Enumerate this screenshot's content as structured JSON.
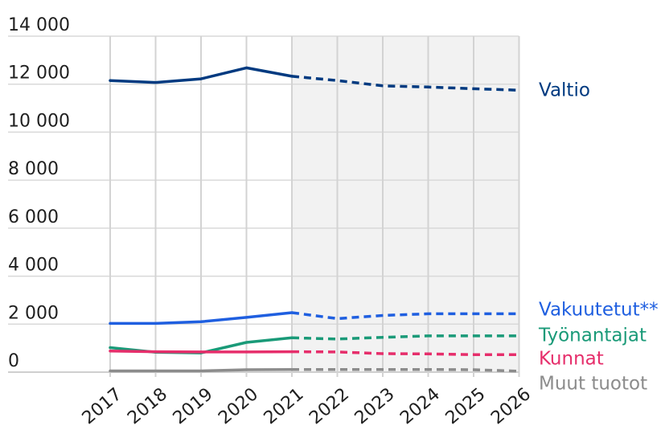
{
  "chart_data": {
    "type": "line",
    "title": "",
    "xlabel": "",
    "ylabel": "",
    "categories": [
      "2017",
      "2018",
      "2019",
      "2020",
      "2021",
      "2022",
      "2023",
      "2024",
      "2025",
      "2026"
    ],
    "ylim": [
      0,
      14000
    ],
    "y_ticks": [
      0,
      2000,
      4000,
      6000,
      8000,
      10000,
      12000,
      14000
    ],
    "y_tick_labels": [
      "0",
      "2 000",
      "4 000",
      "6 000",
      "8 000",
      "10 000",
      "12 000",
      "14 000"
    ],
    "grid": true,
    "forecast_start": "2021",
    "forecast_shading": "#f2f2f2",
    "series": [
      {
        "name": "Valtio",
        "color": "#003a80",
        "values": [
          12150,
          12070,
          12220,
          12680,
          12330,
          12150,
          11930,
          11880,
          11810,
          11750
        ]
      },
      {
        "name": "Vakuutetut**",
        "color": "#1f5fe0",
        "values": [
          2030,
          2030,
          2100,
          2280,
          2480,
          2230,
          2360,
          2430,
          2430,
          2430
        ]
      },
      {
        "name": "Työnantajat",
        "color": "#1a9a78",
        "values": [
          1020,
          830,
          800,
          1240,
          1430,
          1380,
          1450,
          1510,
          1510,
          1510
        ]
      },
      {
        "name": "Kunnat",
        "color": "#e62e6b",
        "values": [
          880,
          850,
          840,
          840,
          850,
          840,
          770,
          760,
          730,
          730
        ]
      },
      {
        "name": "Muut tuotot",
        "color": "#8c8c8c",
        "values": [
          50,
          50,
          50,
          100,
          110,
          110,
          110,
          110,
          100,
          40
        ]
      }
    ]
  }
}
